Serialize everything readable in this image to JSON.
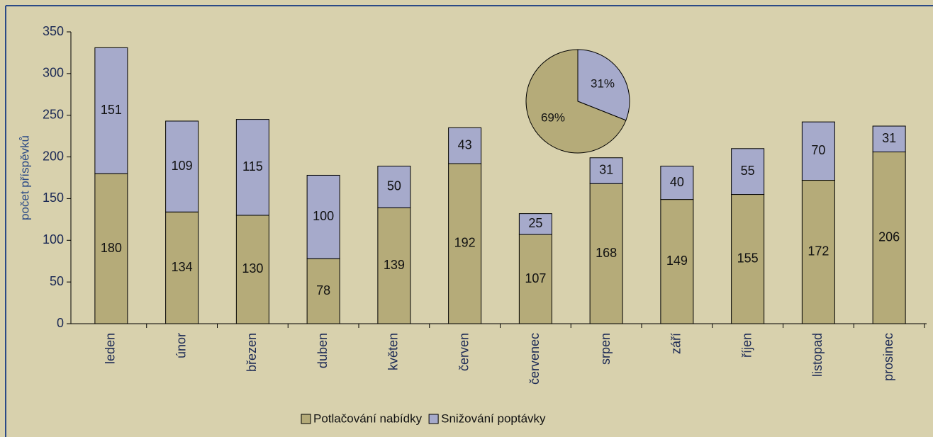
{
  "chart_data": [
    {
      "type": "stacked_bar",
      "ylabel": "počet příspěvků",
      "categories": [
        "leden",
        "únor",
        "březen",
        "duben",
        "květen",
        "červen",
        "červenec",
        "srpen",
        "září",
        "říjen",
        "listopad",
        "prosinec"
      ],
      "series": [
        {
          "name": "Potlačování nabídky",
          "color": "#b5ab79",
          "values": [
            180,
            134,
            130,
            78,
            139,
            192,
            107,
            168,
            149,
            155,
            172,
            206
          ]
        },
        {
          "name": "Snižování poptávky",
          "color": "#a6aacb",
          "values": [
            151,
            109,
            115,
            100,
            50,
            43,
            25,
            31,
            40,
            55,
            70,
            31
          ]
        }
      ],
      "ylim": [
        0,
        350
      ],
      "yticks": [
        0,
        50,
        100,
        150,
        200,
        250,
        300,
        350
      ],
      "legend": "bottom"
    },
    {
      "type": "pie",
      "values": [
        31,
        69
      ],
      "value_labels": [
        "31%",
        "69%"
      ],
      "colors": [
        "#a6aacb",
        "#b5ab79"
      ]
    }
  ]
}
